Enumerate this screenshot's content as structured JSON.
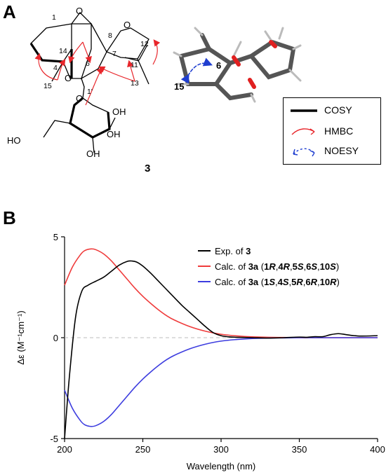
{
  "panels": {
    "a_label": "A",
    "b_label": "B"
  },
  "structure": {
    "compound_number": "3",
    "atoms": {
      "o_epoxide": "O",
      "o_furan": "O",
      "o_pyran": "O",
      "o_link": "O",
      "oh_6": "OH",
      "oh_4": "OH",
      "oh_3": "OH",
      "ho_ch2": "HO",
      "o_ring2": "O"
    },
    "numbers": {
      "n1": "1",
      "n14": "14",
      "n4": "4",
      "n15": "15",
      "n6": "6",
      "n8": "8",
      "n7": "7",
      "n12": "12",
      "n11": "11",
      "n13": "13",
      "n1p": "1'"
    },
    "model_labels": {
      "l15": "15",
      "l6": "6"
    },
    "legend": [
      {
        "label": "COSY",
        "style": "thick-line",
        "color": "#000000"
      },
      {
        "label": "HMBC",
        "style": "curved-arrow",
        "color": "#e8262b"
      },
      {
        "label": "NOESY",
        "style": "dashed-double-arrow",
        "color": "#1f3ed0"
      }
    ]
  },
  "chart_data": {
    "type": "line",
    "xlabel": "Wavelength (nm)",
    "ylabel": "Δε (M⁻¹cm⁻¹)",
    "xlim": [
      200,
      400
    ],
    "ylim": [
      -5,
      5
    ],
    "x_ticks": [
      200,
      250,
      300,
      350,
      400
    ],
    "y_ticks": [
      -5,
      0,
      5
    ],
    "zero_line": "dashed",
    "legend_position": "top-right",
    "series": [
      {
        "name": "Exp. of 3",
        "legend_parts": [
          "Exp. of ",
          "3"
        ],
        "color": "#000000",
        "x": [
          200,
          203,
          207,
          211,
          215,
          220,
          225,
          230,
          235,
          240,
          243,
          246,
          250,
          255,
          260,
          265,
          270,
          275,
          280,
          285,
          290,
          295,
          300,
          305,
          310,
          320,
          330,
          340,
          350,
          355,
          360,
          365,
          370,
          375,
          380,
          385,
          390,
          400
        ],
        "y": [
          -5.0,
          -2.0,
          1.0,
          2.3,
          2.6,
          2.8,
          3.0,
          3.3,
          3.6,
          3.78,
          3.8,
          3.75,
          3.55,
          3.2,
          2.8,
          2.4,
          2.0,
          1.6,
          1.25,
          0.9,
          0.55,
          0.25,
          0.1,
          0.04,
          0.02,
          0.0,
          -0.02,
          0.0,
          0.03,
          0.02,
          0.05,
          0.05,
          0.15,
          0.2,
          0.15,
          0.1,
          0.08,
          0.1
        ]
      },
      {
        "name": "Calc. of 3a (1R,4R,5S,6S,10S)",
        "legend_parts": [
          "Calc. of ",
          "3a",
          " (",
          "1",
          "R",
          ",",
          "4",
          "R",
          ",",
          "5",
          "S",
          ",",
          "6",
          "S",
          ",",
          "10",
          "S",
          ")"
        ],
        "color": "#ef3b3b",
        "x": [
          200,
          205,
          210,
          213,
          217,
          220,
          225,
          230,
          235,
          240,
          245,
          250,
          255,
          260,
          265,
          270,
          280,
          290,
          300,
          310,
          320,
          330,
          340,
          350,
          360,
          370,
          380,
          390,
          400
        ],
        "y": [
          2.6,
          3.5,
          4.1,
          4.32,
          4.4,
          4.36,
          4.15,
          3.8,
          3.35,
          2.9,
          2.45,
          2.05,
          1.7,
          1.38,
          1.1,
          0.88,
          0.55,
          0.32,
          0.17,
          0.09,
          0.04,
          0.02,
          0.01,
          0.0,
          0.0,
          0.0,
          0.0,
          0.0,
          0.0
        ]
      },
      {
        "name": "Calc. of 3a (1S,4S,5R,6R,10R)",
        "legend_parts": [
          "Calc. of ",
          "3a",
          " (",
          "1",
          "S",
          ",",
          "4",
          "S",
          ",",
          "5",
          "R",
          ",",
          "6",
          "R",
          ",",
          "10",
          "R",
          ")"
        ],
        "color": "#3d3ddf",
        "x": [
          200,
          205,
          210,
          213,
          217,
          220,
          225,
          230,
          235,
          240,
          245,
          250,
          255,
          260,
          265,
          270,
          280,
          290,
          300,
          310,
          320,
          330,
          340,
          350,
          360,
          370,
          380,
          390,
          400
        ],
        "y": [
          -2.6,
          -3.5,
          -4.1,
          -4.32,
          -4.4,
          -4.36,
          -4.15,
          -3.8,
          -3.35,
          -2.9,
          -2.45,
          -2.05,
          -1.7,
          -1.38,
          -1.1,
          -0.88,
          -0.55,
          -0.32,
          -0.17,
          -0.09,
          -0.04,
          -0.02,
          -0.01,
          0.0,
          0.0,
          0.0,
          0.0,
          0.0,
          0.0
        ]
      }
    ]
  }
}
